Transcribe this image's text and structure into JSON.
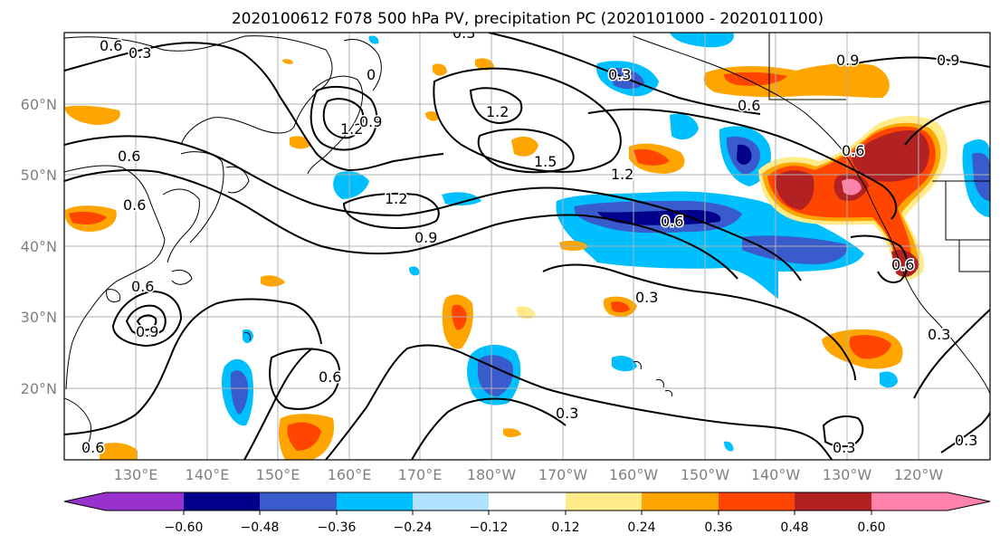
{
  "title": "2020100612 F078 500 hPa PV, precipitation PC (2020101000 - 2020101100)",
  "lat_labels": [
    "60°N",
    "50°N",
    "40°N",
    "30°N",
    "20°N"
  ],
  "lon_labels": [
    "130°E",
    "140°E",
    "150°E",
    "160°E",
    "170°E",
    "180°W",
    "170°W",
    "160°W",
    "150°W",
    "140°W",
    "130°W",
    "120°W"
  ],
  "colorbar": {
    "tick_labels": [
      "−0.60",
      "−0.48",
      "−0.36",
      "−0.24",
      "−0.12",
      "0.12",
      "0.24",
      "0.36",
      "0.48",
      "0.60"
    ],
    "colors": [
      "#9932cc",
      "#00008b",
      "#3a5bcc",
      "#00bfff",
      "#b0e2ff",
      "#ffffff",
      "#ffeb8a",
      "#ffa500",
      "#ff4500",
      "#b22222",
      "#ff82ab"
    ]
  },
  "contour_labels": [
    "0.6",
    "0.3",
    "0.6",
    "0.3",
    "0.9",
    "0.9",
    "1.2",
    "1.2",
    "1.5",
    "1.2",
    "0.6",
    "0.6",
    "0.6",
    "1.2",
    "0.9",
    "0.6",
    "0.9",
    "0.6",
    "0.3",
    "0.3",
    "0.6",
    "0.3",
    "0.3",
    "0.3",
    "0.6",
    "0.9",
    "0.6",
    "0.3",
    "0"
  ]
}
